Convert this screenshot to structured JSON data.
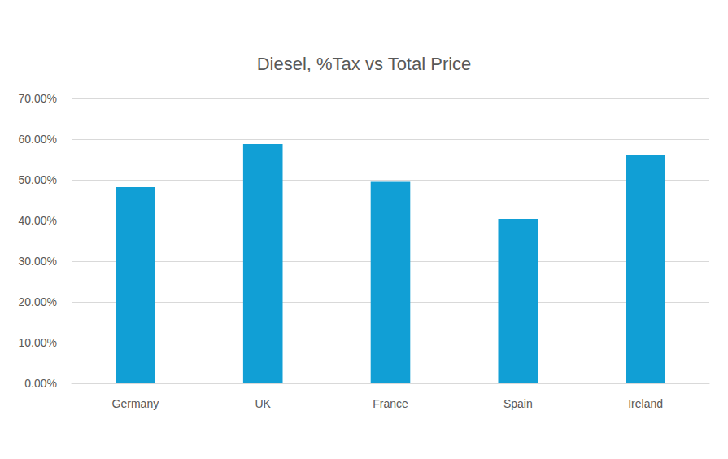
{
  "chart_data": {
    "type": "bar",
    "title": "Diesel, %Tax vs Total Price",
    "categories": [
      "Germany",
      "UK",
      "France",
      "Spain",
      "Ireland"
    ],
    "values": [
      48.2,
      58.8,
      49.5,
      40.4,
      56.0
    ],
    "color": "#119fd5",
    "ylim": [
      0,
      70
    ],
    "yticks": [
      {
        "value": 0,
        "label": "0.00%"
      },
      {
        "value": 10,
        "label": "10.00%"
      },
      {
        "value": 20,
        "label": "20.00%"
      },
      {
        "value": 30,
        "label": "30.00%"
      },
      {
        "value": 40,
        "label": "40.00%"
      },
      {
        "value": 50,
        "label": "50.00%"
      },
      {
        "value": 60,
        "label": "60.00%"
      },
      {
        "value": 70,
        "label": "70.00%"
      }
    ],
    "grid": true
  }
}
